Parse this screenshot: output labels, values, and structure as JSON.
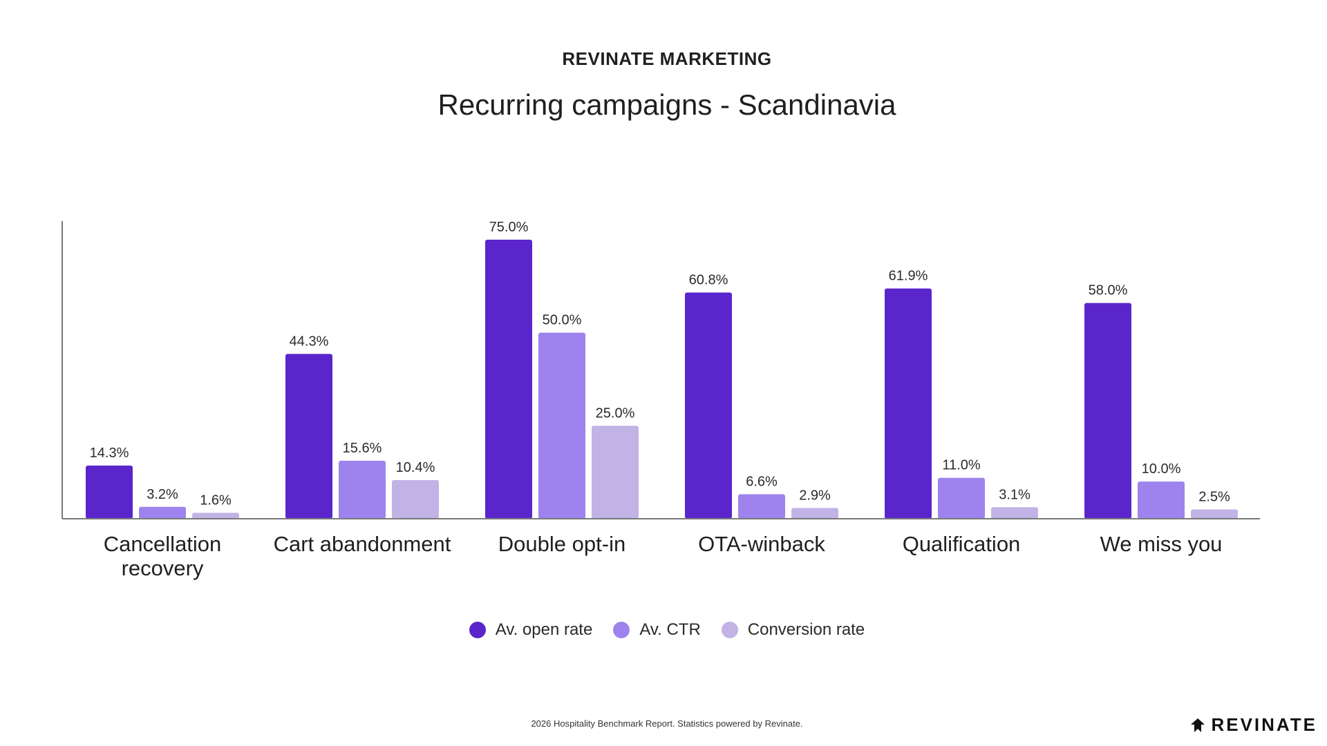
{
  "header": {
    "brand": "REVINATE MARKETING"
  },
  "footer": {
    "note": "2026 Hospitality Benchmark Report. Statistics powered by Revinate.",
    "logo_text": "REVINATE"
  },
  "colors": {
    "open_rate": "#5b25cc",
    "ctr": "#9e83ee",
    "conversion": "#c2b3e6",
    "axis": "#777777"
  },
  "chart_data": {
    "type": "bar",
    "title": "Recurring campaigns - Scandinavia",
    "xlabel": "",
    "ylabel": "",
    "ylim": [
      0,
      80
    ],
    "legend_position": "bottom-center",
    "categories": [
      [
        "Cancellation",
        "recovery"
      ],
      [
        "Cart abandonment"
      ],
      [
        "Double opt-in"
      ],
      [
        "OTA-winback"
      ],
      [
        "Qualification"
      ],
      [
        "We miss you"
      ]
    ],
    "series": [
      {
        "name": "Av. open rate",
        "color": "#5b25cc",
        "values": [
          14.3,
          44.3,
          75.0,
          60.8,
          61.9,
          58.0
        ],
        "labels": [
          "14.3%",
          "44.3%",
          "75.0%",
          "60.8%",
          "61.9%",
          "58.0%"
        ]
      },
      {
        "name": "Av. CTR",
        "color": "#9e83ee",
        "values": [
          3.2,
          15.6,
          50.0,
          6.6,
          11.0,
          10.0
        ],
        "labels": [
          "3.2%",
          "15.6%",
          "50.0%",
          "6.6%",
          "11.0%",
          "10.0%"
        ]
      },
      {
        "name": "Conversion rate",
        "color": "#c2b3e6",
        "values": [
          1.6,
          10.4,
          25.0,
          2.9,
          3.1,
          2.5
        ],
        "labels": [
          "1.6%",
          "10.4%",
          "25.0%",
          "2.9%",
          "3.1%",
          "2.5%"
        ]
      }
    ]
  }
}
